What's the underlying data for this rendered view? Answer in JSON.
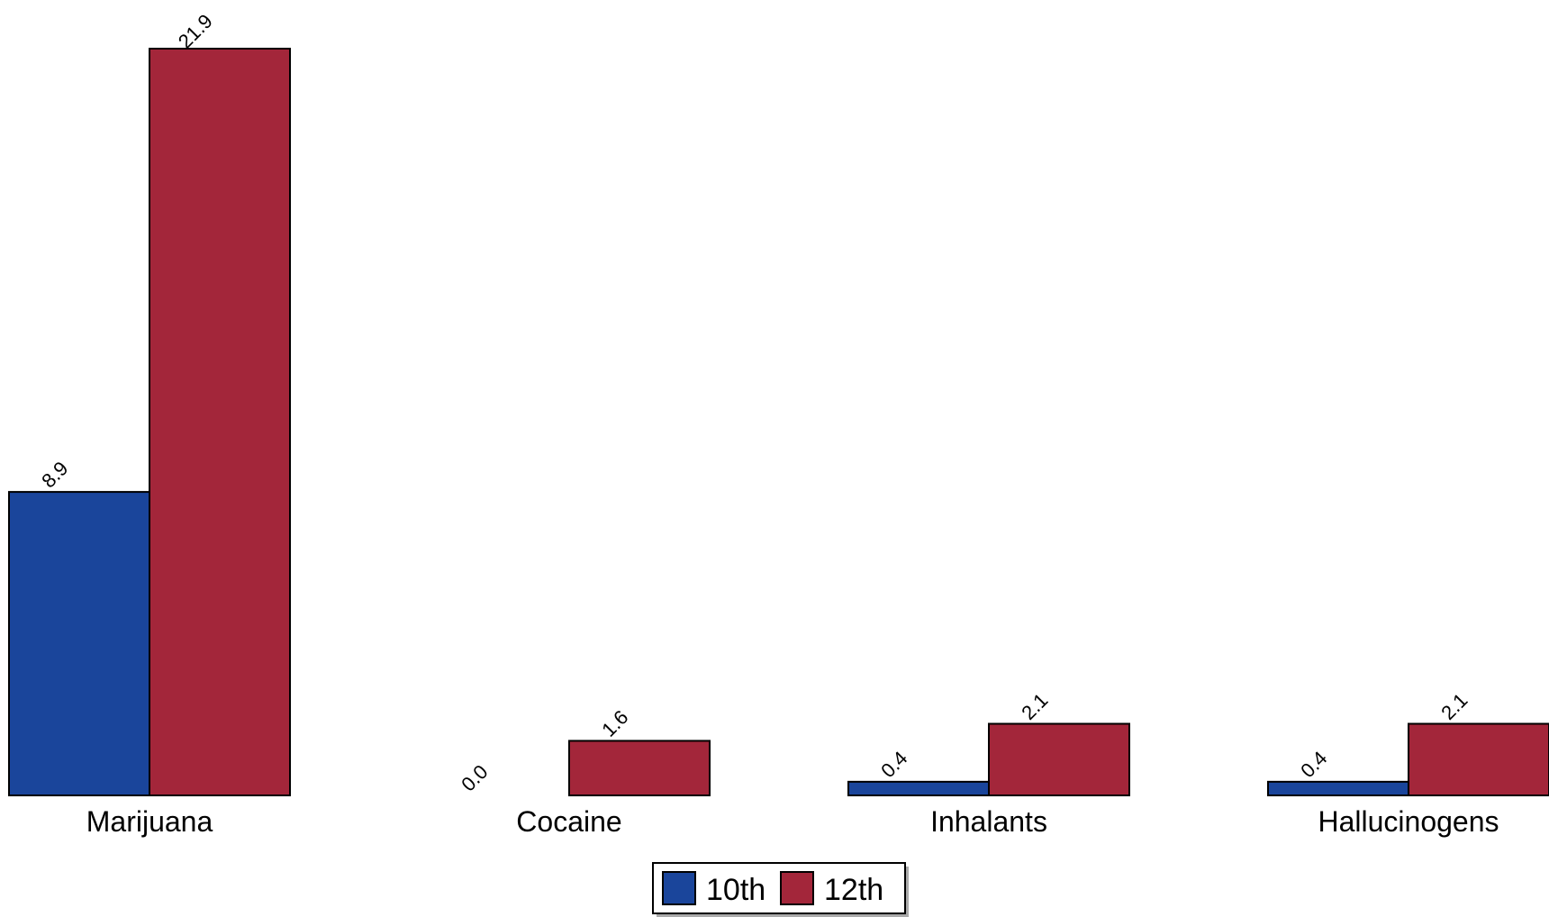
{
  "chart_data": {
    "type": "bar",
    "title": "",
    "xlabel": "",
    "ylabel": "",
    "ylim": [
      0,
      22.5
    ],
    "grid": false,
    "legend_position": "bottom-center",
    "categories": [
      "Marijuana",
      "Cocaine",
      "Inhalants",
      "Hallucinogens"
    ],
    "series": [
      {
        "name": "10th",
        "color": "#1a459b",
        "values": [
          8.9,
          0.0,
          0.4,
          0.4
        ],
        "labels": [
          "8.9",
          "0.0",
          "0.4",
          "0.4"
        ]
      },
      {
        "name": "12th",
        "color": "#a3263a",
        "values": [
          21.9,
          1.6,
          2.1,
          2.1
        ],
        "labels": [
          "21.9",
          "1.6",
          "2.1",
          "2.1"
        ]
      }
    ]
  }
}
